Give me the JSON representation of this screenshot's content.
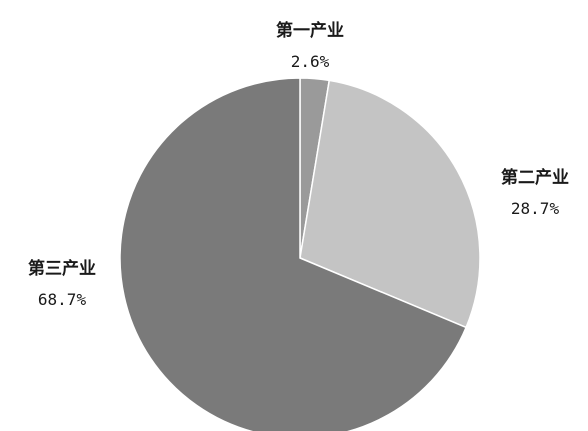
{
  "chart_data": {
    "type": "pie",
    "title": "",
    "start_angle_deg": 0,
    "direction": "clockwise",
    "slices": [
      {
        "label": "第一产业",
        "value": 2.6,
        "value_label": "2.6%",
        "color": "#9a9a9a"
      },
      {
        "label": "第二产业",
        "value": 28.7,
        "value_label": "28.7%",
        "color": "#c4c4c4"
      },
      {
        "label": "第三产业",
        "value": 68.7,
        "value_label": "68.7%",
        "color": "#7a7a7a"
      }
    ]
  }
}
